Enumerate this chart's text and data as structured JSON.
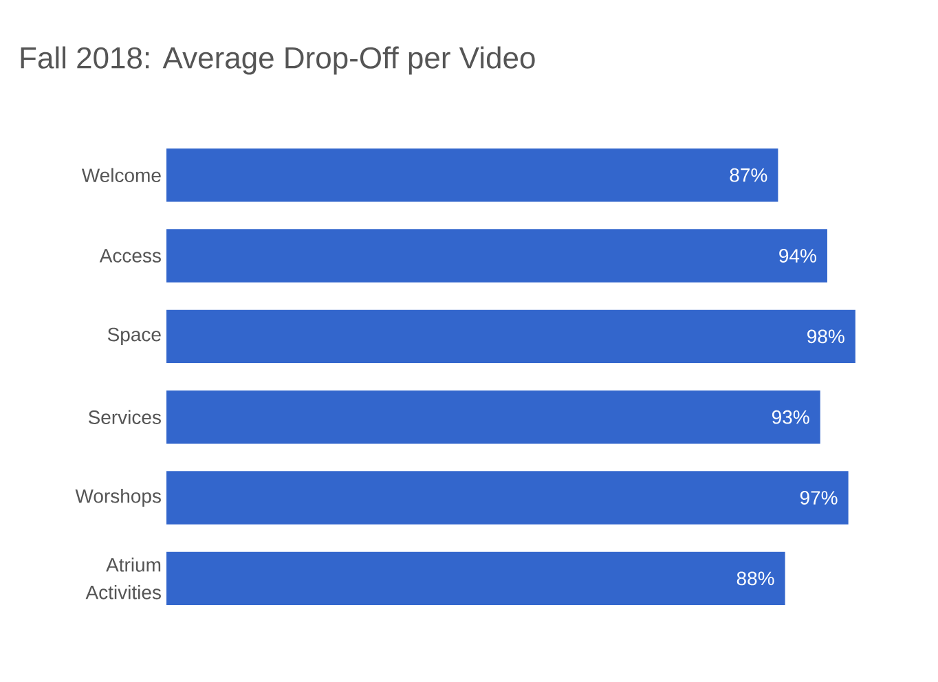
{
  "chart_data": {
    "type": "bar",
    "orientation": "horizontal",
    "title": "Fall 2018: Average Drop-Off per Video",
    "categories": [
      "Welcome",
      "Access",
      "Space",
      "Services",
      "Worshops",
      "Atrium Activities"
    ],
    "values": [
      87,
      94,
      98,
      93,
      97,
      88
    ],
    "value_labels": [
      "87%",
      "94%",
      "98%",
      "93%",
      "97%",
      "88%"
    ],
    "color": "#3366cc"
  }
}
